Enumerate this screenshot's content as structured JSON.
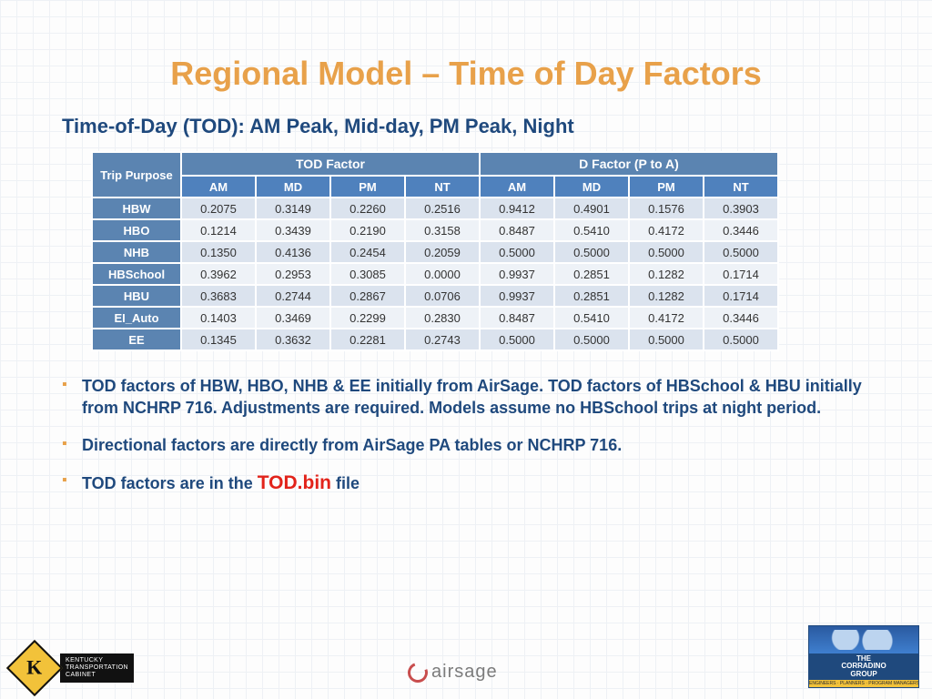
{
  "title": "Regional Model – Time of Day Factors",
  "subtitle": "Time-of-Day (TOD): AM Peak, Mid-day, PM Peak, Night",
  "table": {
    "corner": "Trip Purpose",
    "group_headers": [
      "TOD Factor",
      "D Factor (P to A)"
    ],
    "sub_headers": [
      "AM",
      "MD",
      "PM",
      "NT",
      "AM",
      "MD",
      "PM",
      "NT"
    ],
    "row_labels": [
      "HBW",
      "HBO",
      "NHB",
      "HBSchool",
      "HBU",
      "EI_Auto",
      "EE"
    ],
    "rows": [
      [
        "0.2075",
        "0.3149",
        "0.2260",
        "0.2516",
        "0.9412",
        "0.4901",
        "0.1576",
        "0.3903"
      ],
      [
        "0.1214",
        "0.3439",
        "0.2190",
        "0.3158",
        "0.8487",
        "0.5410",
        "0.4172",
        "0.3446"
      ],
      [
        "0.1350",
        "0.4136",
        "0.2454",
        "0.2059",
        "0.5000",
        "0.5000",
        "0.5000",
        "0.5000"
      ],
      [
        "0.3962",
        "0.2953",
        "0.3085",
        "0.0000",
        "0.9937",
        "0.2851",
        "0.1282",
        "0.1714"
      ],
      [
        "0.3683",
        "0.2744",
        "0.2867",
        "0.0706",
        "0.9937",
        "0.2851",
        "0.1282",
        "0.1714"
      ],
      [
        "0.1403",
        "0.3469",
        "0.2299",
        "0.2830",
        "0.8487",
        "0.5410",
        "0.4172",
        "0.3446"
      ],
      [
        "0.1345",
        "0.3632",
        "0.2281",
        "0.2743",
        "0.5000",
        "0.5000",
        "0.5000",
        "0.5000"
      ]
    ],
    "header_bg": "#5b84b1",
    "subheader_bg": "#4f81bd",
    "band_colors": [
      "#dbe3ee",
      "#eef2f7"
    ],
    "border_color": "#ffffff"
  },
  "bullets": {
    "b1": "TOD factors of HBW, HBO, NHB & EE initially from AirSage. TOD factors of HBSchool & HBU initially from NCHRP 716.  Adjustments are required. Models assume no HBSchool trips at night period.",
    "b2": "Directional factors are directly from AirSage PA tables or NCHRP 716.",
    "b3_pre": "TOD factors are in the ",
    "b3_file": "TOD.bin",
    "b3_post": " file"
  },
  "logos": {
    "kytc_lines": "KENTUCKY\nTRANSPORTATION\nCABINET",
    "airsage": "airsage",
    "corradino_line1": "THE",
    "corradino_line2": "CORRADINO",
    "corradino_line3": "GROUP",
    "corradino_tag": "ENGINEERS · PLANNERS · PROGRAM MANAGERS · ENVIRONMENTAL SCIENTISTS"
  },
  "colors": {
    "title": "#e8a14a",
    "body_text": "#1f497d",
    "accent_red": "#e2231a"
  }
}
